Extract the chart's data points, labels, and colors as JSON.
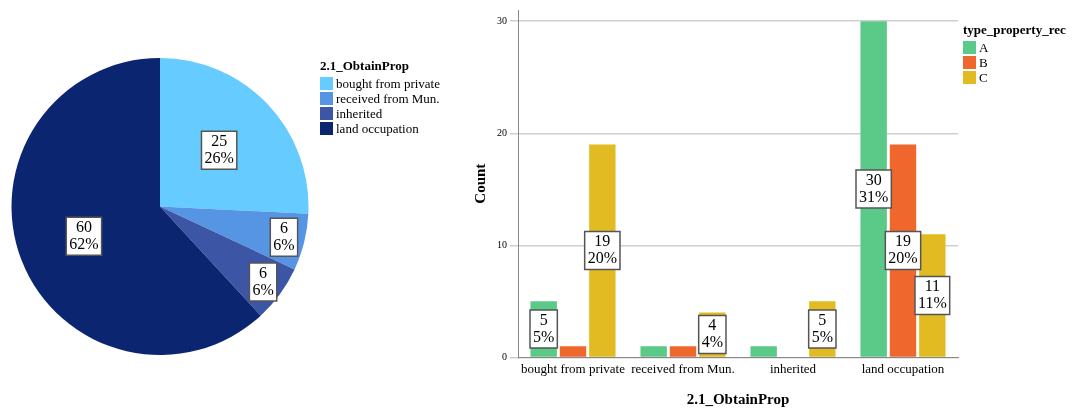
{
  "chart_data": [
    {
      "type": "pie",
      "legend_title": "2.1_ObtainProp",
      "legend": "right",
      "categories": [
        "bought from private",
        "received from Mun.",
        "inherited",
        "land occupation"
      ],
      "values": [
        25,
        6,
        6,
        60
      ],
      "colors": [
        "#66ccff",
        "#5595e3",
        "#3d55a5",
        "#0b2570"
      ],
      "value_labels": [
        "25\n26%",
        "6\n6%",
        "6\n6%",
        "60\n62%"
      ]
    },
    {
      "type": "bar",
      "xlabel": "2.1_ObtainProp",
      "ylabel": "Count",
      "legend_title": "type_property_rec",
      "legend": "right",
      "categories": [
        "bought from private",
        "received from Mun.",
        "inherited",
        "land occupation"
      ],
      "series": [
        {
          "name": "A",
          "color": "#5bc988",
          "values": [
            5,
            1,
            1,
            30
          ],
          "value_labels": [
            "5\n5%",
            null,
            null,
            "30\n31%"
          ]
        },
        {
          "name": "B",
          "color": "#f0672d",
          "values": [
            1,
            1,
            0,
            19
          ],
          "value_labels": [
            null,
            null,
            null,
            "19\n20%"
          ]
        },
        {
          "name": "C",
          "color": "#e1bb21",
          "values": [
            19,
            4,
            5,
            11
          ],
          "value_labels": [
            "19\n20%",
            "4\n4%",
            "5\n5%",
            "11\n11%"
          ]
        }
      ],
      "ylim": [
        0,
        31
      ],
      "yticks": [
        0,
        10,
        20,
        30
      ],
      "grid": "y"
    }
  ]
}
